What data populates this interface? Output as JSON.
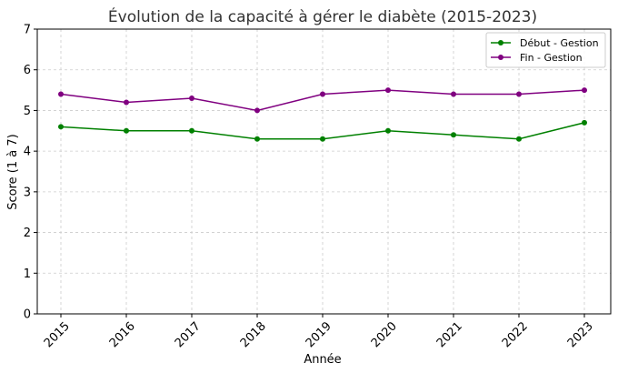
{
  "chart_data": {
    "type": "line",
    "title": "Évolution de la capacité à gérer le diabète (2015-2023)",
    "xlabel": "Année",
    "ylabel": "Score (1 à 7)",
    "categories": [
      "2015",
      "2016",
      "2017",
      "2018",
      "2019",
      "2020",
      "2021",
      "2022",
      "2023"
    ],
    "yticks": [
      "0",
      "1",
      "2",
      "3",
      "4",
      "5",
      "6",
      "7"
    ],
    "ylim": [
      0,
      7
    ],
    "grid": true,
    "legend_position": "top-right",
    "series": [
      {
        "name": "Début - Gestion",
        "color": "#008000",
        "values": [
          4.6,
          4.5,
          4.5,
          4.3,
          4.3,
          4.5,
          4.4,
          4.3,
          4.7
        ]
      },
      {
        "name": "Fin - Gestion",
        "color": "#800080",
        "values": [
          5.4,
          5.2,
          5.3,
          5.0,
          5.4,
          5.5,
          5.4,
          5.4,
          5.5
        ]
      }
    ]
  }
}
